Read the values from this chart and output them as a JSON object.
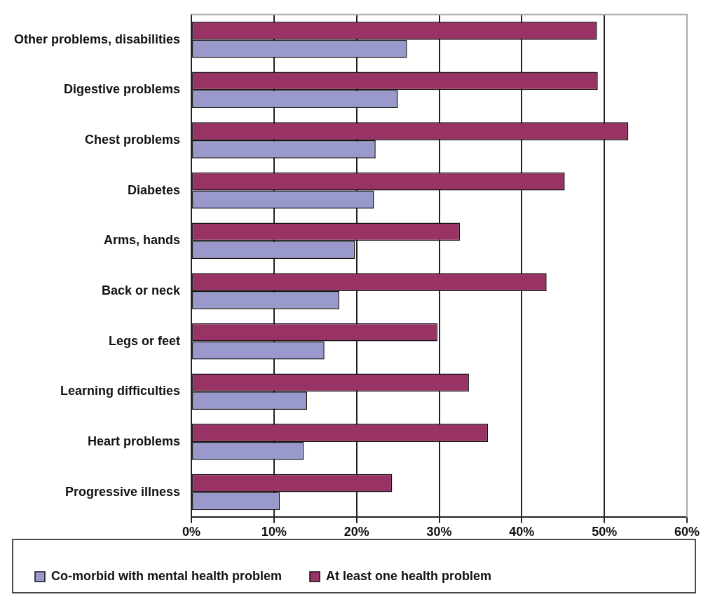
{
  "chart_data": {
    "type": "bar",
    "orientation": "horizontal",
    "categories": [
      "Other problems, disabilities",
      "Digestive problems",
      "Chest problems",
      "Diabetes",
      "Arms, hands",
      "Back or neck",
      "Legs or feet",
      "Learning difficulties",
      "Heart problems",
      "Progressive illness"
    ],
    "series": [
      {
        "name": "Co-morbid with mental health problem",
        "color": "#9999cc",
        "values": [
          26.1,
          25.0,
          22.3,
          22.1,
          19.8,
          17.9,
          16.1,
          14.0,
          13.6,
          10.7
        ]
      },
      {
        "name": "At least one health problem",
        "color": "#993366",
        "values": [
          49.1,
          49.2,
          52.9,
          45.2,
          32.5,
          43.0,
          29.8,
          33.6,
          35.9,
          24.3
        ]
      }
    ],
    "xlim": [
      0,
      60
    ],
    "xticks": [
      {
        "value": 0,
        "label": "0%"
      },
      {
        "value": 10,
        "label": "10%"
      },
      {
        "value": 20,
        "label": "20%"
      },
      {
        "value": 30,
        "label": "30%"
      },
      {
        "value": 40,
        "label": "40%"
      },
      {
        "value": 50,
        "label": "50%"
      },
      {
        "value": 60,
        "label": "60%"
      }
    ],
    "grid": "x",
    "legend": "bottom"
  }
}
